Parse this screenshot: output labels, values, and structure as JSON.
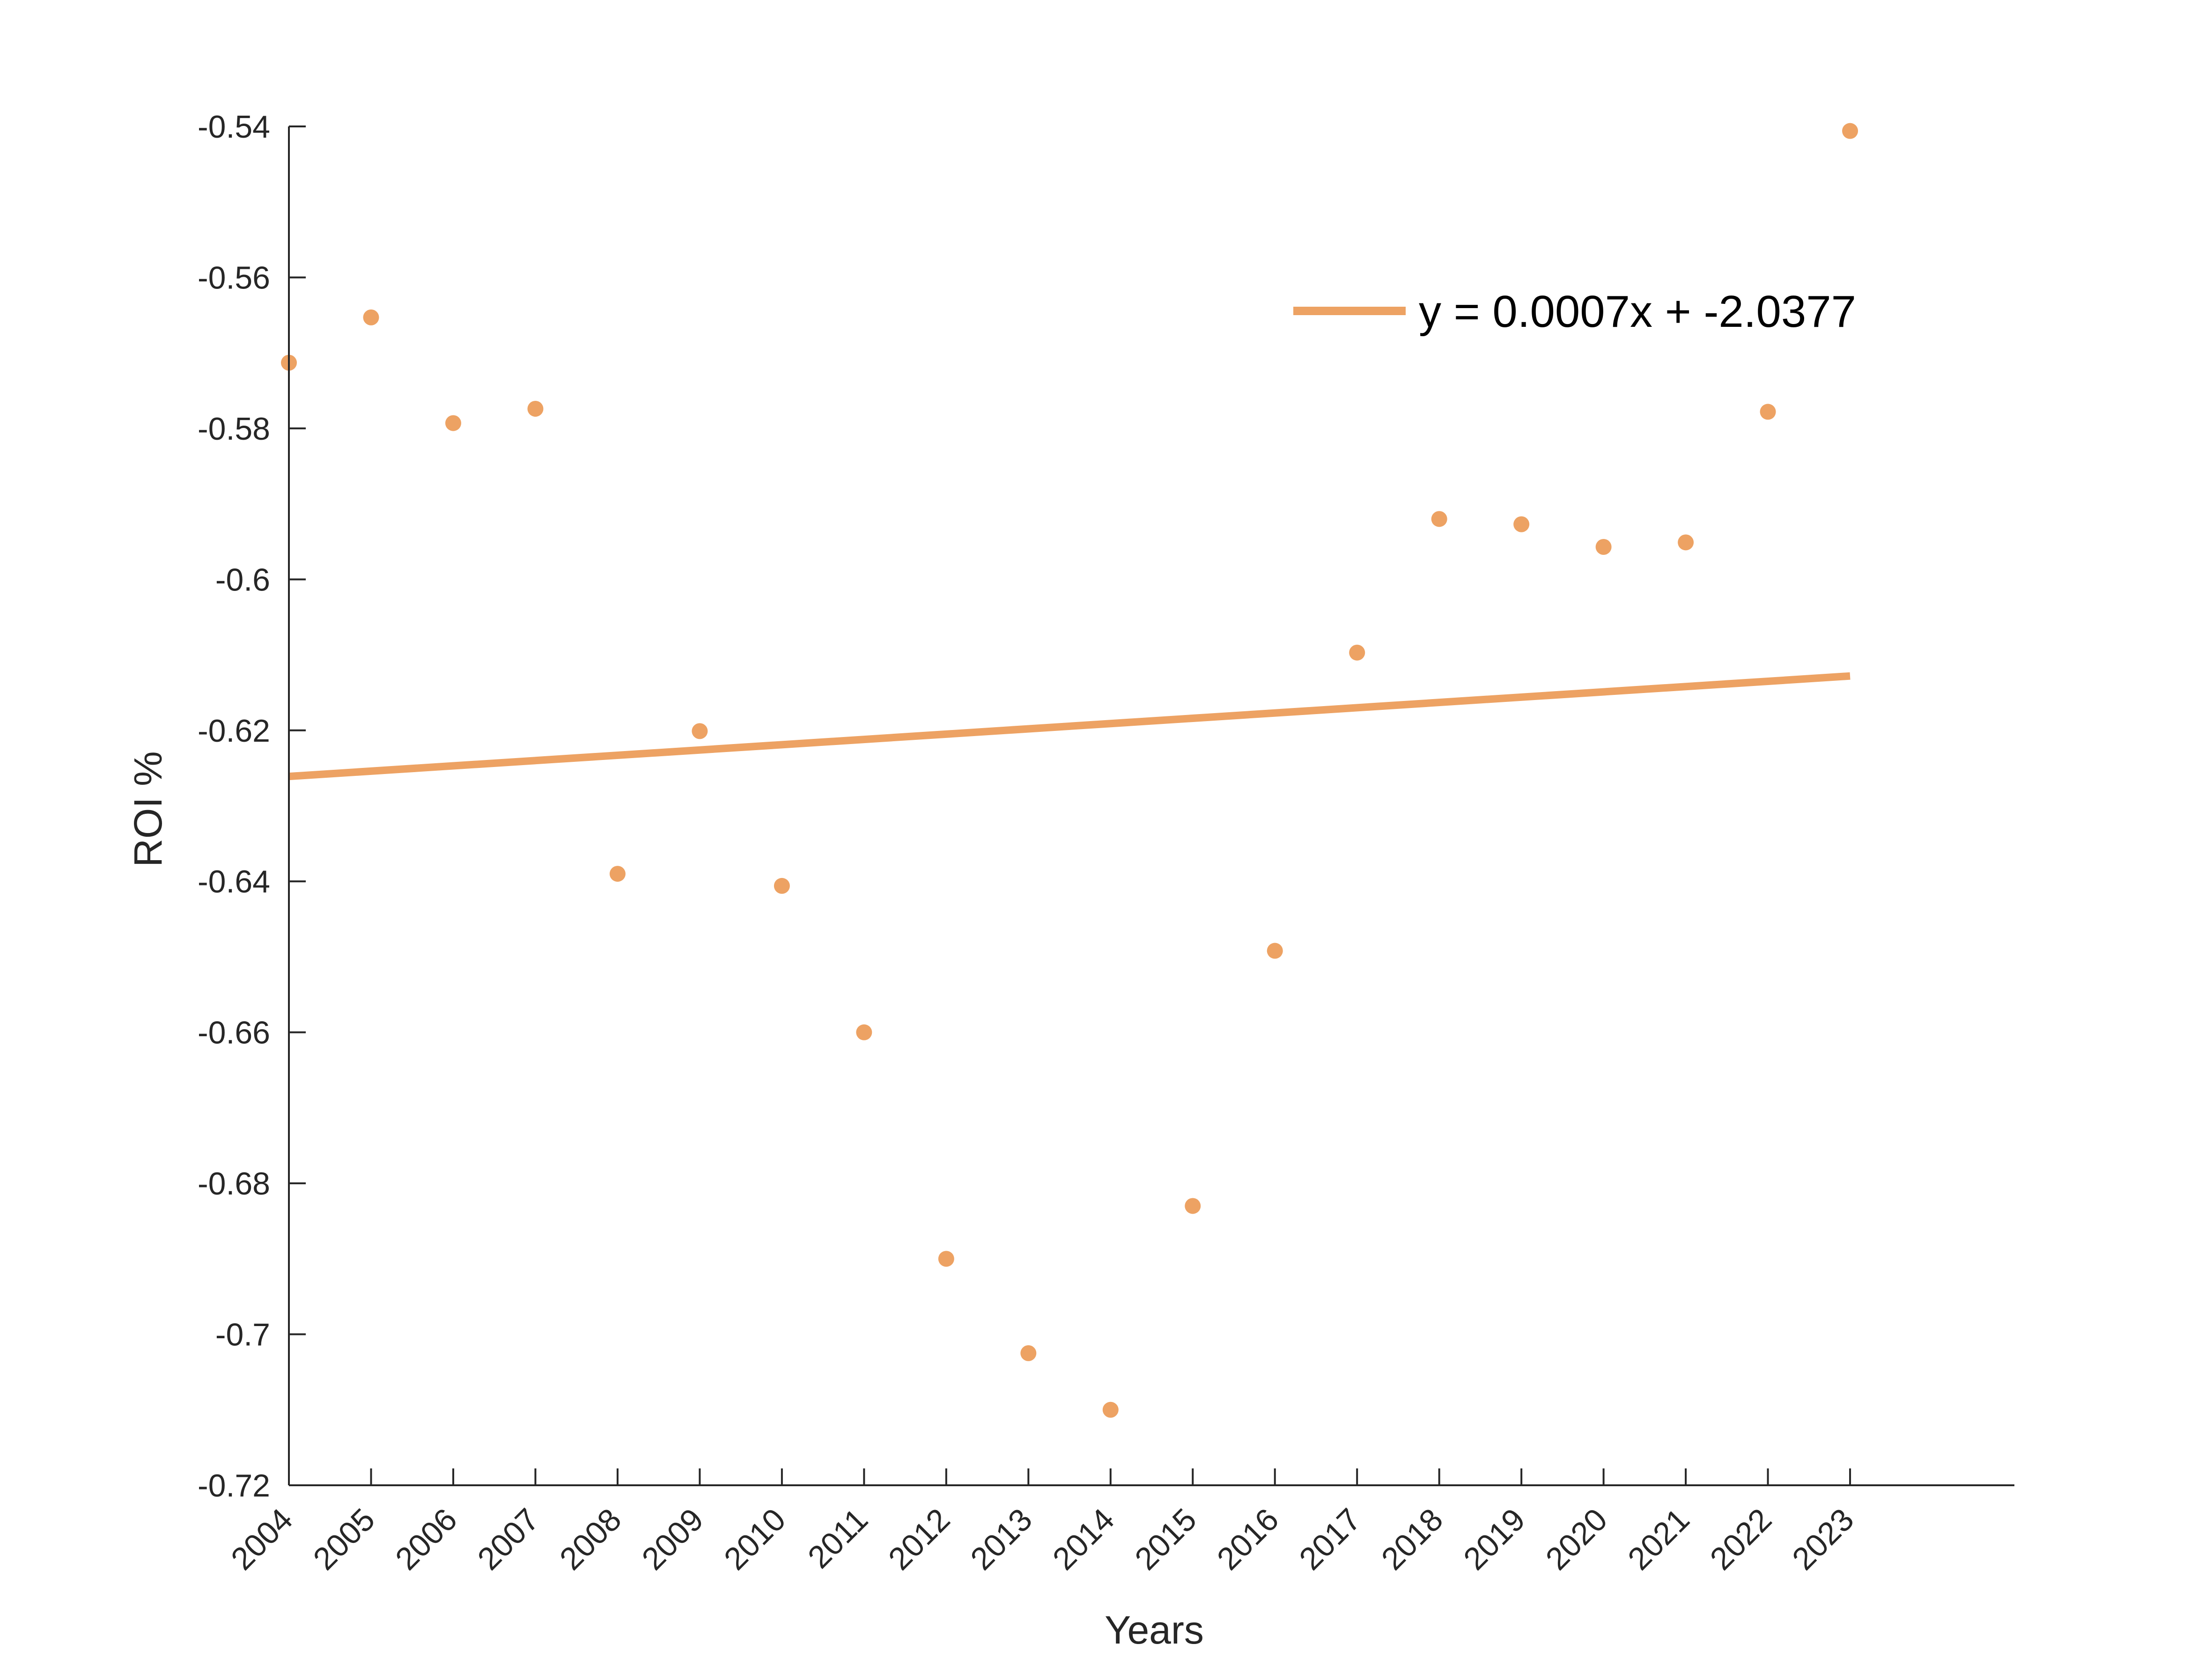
{
  "chart_data": {
    "type": "scatter",
    "title": "",
    "xlabel": "Years",
    "ylabel": "ROI %",
    "x": [
      2004,
      2005,
      2006,
      2007,
      2008,
      2009,
      2010,
      2011,
      2012,
      2013,
      2014,
      2015,
      2016,
      2017,
      2018,
      2019,
      2020,
      2021,
      2022,
      2023
    ],
    "x_tick_labels": [
      "2004",
      "2005",
      "2006",
      "2007",
      "2008",
      "2009",
      "2010",
      "2011",
      "2012",
      "2013",
      "2014",
      "2015",
      "2016",
      "2017",
      "2018",
      "2019",
      "2020",
      "2021",
      "2022",
      "2023"
    ],
    "xlim": [
      2004,
      2025
    ],
    "y_ticks": [
      -0.54,
      -0.56,
      -0.58,
      -0.6,
      -0.62,
      -0.64,
      -0.66,
      -0.68,
      -0.7,
      -0.72
    ],
    "y_tick_labels": [
      "-0.54",
      "-0.56",
      "-0.58",
      "-0.6",
      "-0.62",
      "-0.64",
      "-0.66",
      "-0.68",
      "-0.7",
      "-0.72"
    ],
    "ylim": [
      -0.72,
      -0.54
    ],
    "grid": false,
    "series": [
      {
        "kind": "scatter",
        "values": [
          -0.5713,
          -0.5653,
          -0.5793,
          -0.5774,
          -0.639,
          -0.6201,
          -0.6406,
          -0.66,
          -0.69,
          -0.7025,
          -0.71,
          -0.683,
          -0.6492,
          -0.6097,
          -0.592,
          -0.5927,
          -0.5957,
          -0.5951,
          -0.5778,
          -0.5406
        ],
        "color": "#EDA263"
      },
      {
        "kind": "trendline",
        "name": "y = 0.0007x + -2.0377",
        "x": [
          2004,
          2023
        ],
        "values": [
          -0.6261,
          -0.6128
        ],
        "color": "#EDA263"
      }
    ],
    "legend": {
      "position": "top-right",
      "entries": [
        "y = 0.0007x + -2.0377"
      ]
    }
  }
}
